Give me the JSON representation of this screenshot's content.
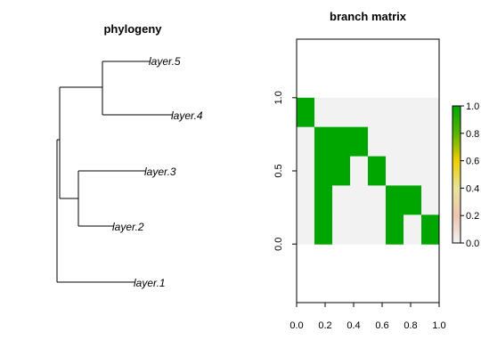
{
  "chart_data": [
    {
      "type": "tree",
      "title": "phylogeny",
      "tips": [
        "layer.5",
        "layer.4",
        "layer.3",
        "layer.2",
        "layer.1"
      ]
    },
    {
      "type": "heatmap",
      "title": "branch matrix",
      "x_ticks": [
        "0.0",
        "0.2",
        "0.4",
        "0.6",
        "0.8",
        "1.0"
      ],
      "y_ticks": [
        "0.0",
        "0.5",
        "1.0"
      ],
      "xlim": [
        0,
        1
      ],
      "ylim": [
        -0.4,
        1.4
      ],
      "n_cols": 8,
      "n_rows": 5,
      "matrix": [
        [
          1,
          0,
          0,
          0,
          0,
          0,
          0,
          0
        ],
        [
          0,
          1,
          1,
          1,
          0,
          0,
          0,
          0
        ],
        [
          0,
          1,
          1,
          0,
          1,
          0,
          0,
          0
        ],
        [
          0,
          1,
          0,
          0,
          0,
          1,
          1,
          0
        ],
        [
          0,
          1,
          0,
          0,
          0,
          1,
          0,
          1
        ]
      ],
      "colors": {
        "one": "#00a600",
        "zero": "#f2f2f2"
      },
      "colorbar": {
        "ticks": [
          "0.0",
          "0.2",
          "0.4",
          "0.6",
          "0.8",
          "1.0"
        ],
        "gradient": [
          "#f2f2f2",
          "#eec4b2",
          "#e8e49a",
          "#f0d000",
          "#58b400",
          "#00a600"
        ]
      }
    }
  ]
}
